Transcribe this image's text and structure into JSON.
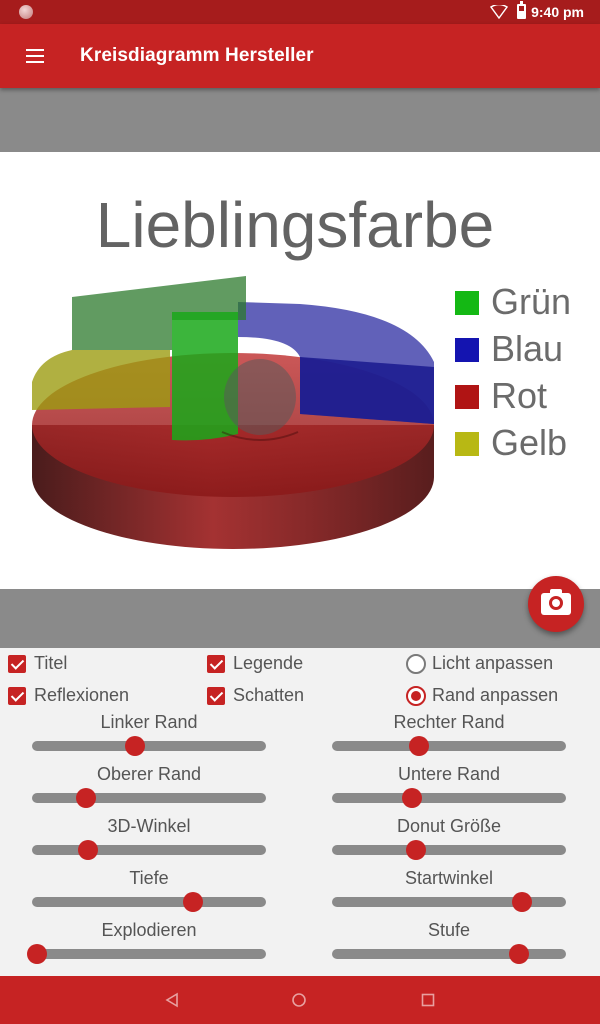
{
  "status_bar": {
    "time": "9:40 pm"
  },
  "app_bar": {
    "title": "Kreisdiagramm Hersteller",
    "menu_icon": "hamburger-menu-icon"
  },
  "chart_data": {
    "type": "pie",
    "style": "3d-donut",
    "title": "Lieblingsfarbe",
    "legend_position": "right",
    "legend": [
      {
        "name": "Grün",
        "color": "#14b814"
      },
      {
        "name": "Blau",
        "color": "#1414b0"
      },
      {
        "name": "Rot",
        "color": "#b01414"
      },
      {
        "name": "Gelb",
        "color": "#b8b814"
      }
    ]
  },
  "fab": {
    "icon": "camera-icon"
  },
  "options": {
    "checkboxes": [
      {
        "label": "Titel",
        "checked": true
      },
      {
        "label": "Legende",
        "checked": true
      },
      {
        "label": "Reflexionen",
        "checked": true
      },
      {
        "label": "Schatten",
        "checked": true
      }
    ],
    "radios": [
      {
        "label": "Licht anpassen",
        "selected": false
      },
      {
        "label": "Rand anpassen",
        "selected": true
      }
    ]
  },
  "sliders": [
    {
      "label": "Linker Rand",
      "value": 0.44
    },
    {
      "label": "Rechter Rand",
      "value": 0.37
    },
    {
      "label": "Oberer Rand",
      "value": 0.23
    },
    {
      "label": "Untere Rand",
      "value": 0.34
    },
    {
      "label": "3D-Winkel",
      "value": 0.24
    },
    {
      "label": "Donut Größe",
      "value": 0.36
    },
    {
      "label": "Tiefe",
      "value": 0.69
    },
    {
      "label": "Startwinkel",
      "value": 0.81
    },
    {
      "label": "Explodieren",
      "value": 0.02
    },
    {
      "label": "Stufe",
      "value": 0.8
    }
  ],
  "nav_bar": {
    "back_icon": "back-triangle-icon",
    "home_icon": "home-circle-icon",
    "recents_icon": "recents-square-icon"
  }
}
